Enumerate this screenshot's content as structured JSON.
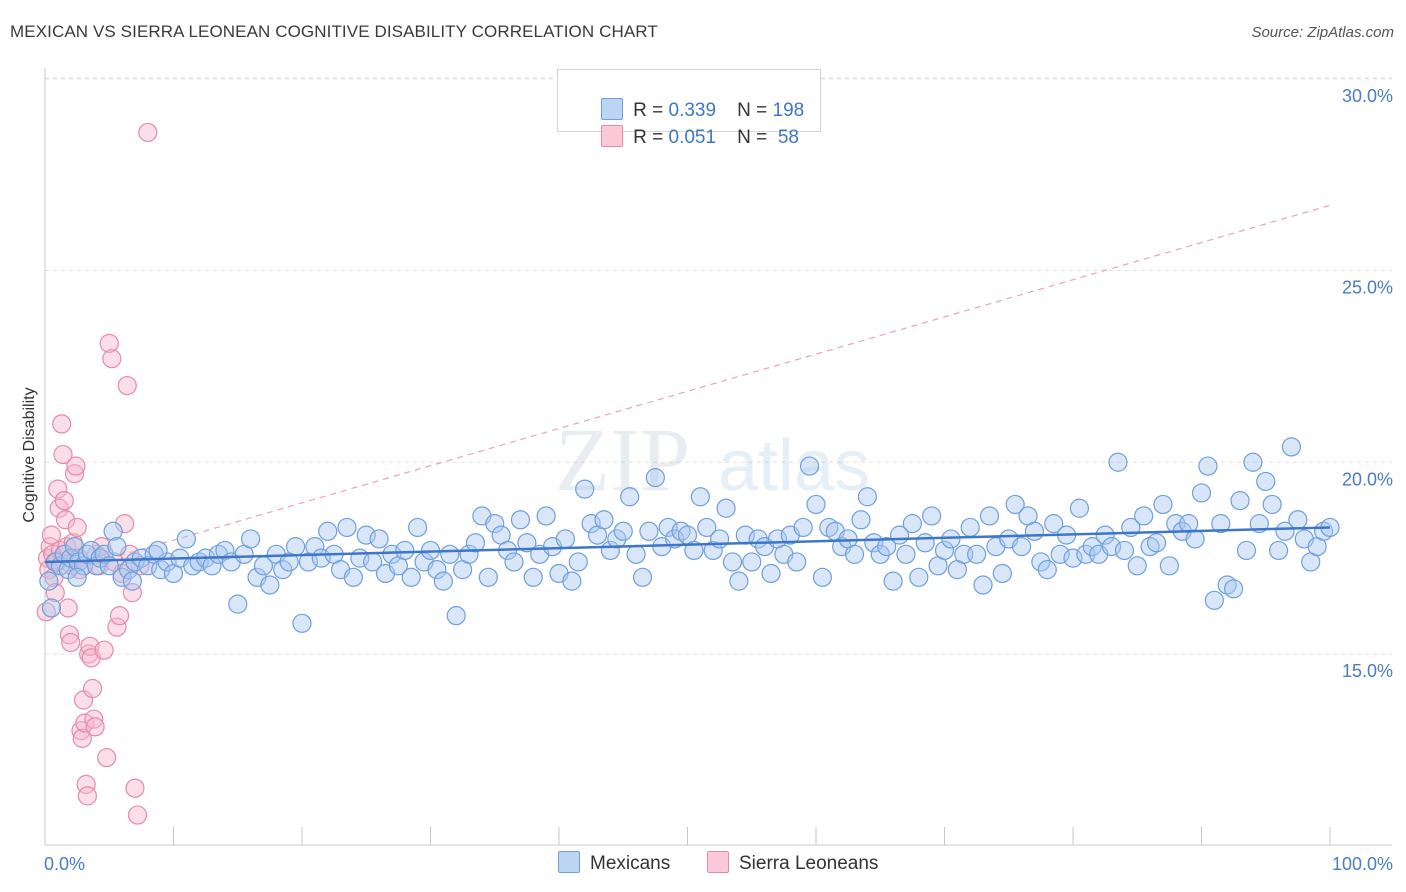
{
  "title": "MEXICAN VS SIERRA LEONEAN COGNITIVE DISABILITY CORRELATION CHART",
  "source": "Source: ZipAtlas.com",
  "watermark": {
    "zip": "ZIP",
    "atlas": "atlas"
  },
  "colors": {
    "blue_fill": "#a9c8ef",
    "blue_stroke": "#6f9fdc",
    "blue_line": "#3f76c7",
    "pink_fill": "#f7b8cb",
    "pink_stroke": "#e68aa7",
    "pink_line": "#e8a3b8",
    "tick_text": "#4a7cc4",
    "grid": "#e0e0e0"
  },
  "legend": {
    "rows": [
      {
        "r_label": "R = ",
        "r_value": "0.339",
        "n_label": "N = ",
        "n_value": "198"
      },
      {
        "r_label": "R = ",
        "r_value": "0.051",
        "n_label": "N = ",
        "n_value": " 58"
      }
    ]
  },
  "bottom_legend": {
    "series1": "Mexicans",
    "series2": "Sierra Leoneans"
  },
  "chart_data": {
    "type": "scatter",
    "title": "MEXICAN VS SIERRA LEONEAN COGNITIVE DISABILITY CORRELATION CHART",
    "xlabel": "",
    "ylabel": "Cognitive Disability",
    "xlim": [
      0,
      100
    ],
    "ylim": [
      10.0,
      31.0
    ],
    "y_ticks": [
      15.0,
      20.0,
      25.0,
      30.0
    ],
    "y_tick_labels": [
      "15.0%",
      "20.0%",
      "25.0%",
      "30.0%"
    ],
    "x_tick_labels": [
      "0.0%",
      "100.0%"
    ],
    "series": [
      {
        "name": "Mexicans",
        "R": 0.339,
        "N": 198,
        "trend": {
          "x": [
            0,
            100
          ],
          "y": [
            17.4,
            18.3
          ]
        },
        "points": [
          [
            0.3,
            16.9
          ],
          [
            0.5,
            16.2
          ],
          [
            0.8,
            17.4
          ],
          [
            1.2,
            17.3
          ],
          [
            1.5,
            17.6
          ],
          [
            1.8,
            17.2
          ],
          [
            2.0,
            17.5
          ],
          [
            2.3,
            17.8
          ],
          [
            2.6,
            17.4
          ],
          [
            3.0,
            17.3
          ],
          [
            3.3,
            17.6
          ],
          [
            3.6,
            17.7
          ],
          [
            4.0,
            17.3
          ],
          [
            4.3,
            17.5
          ],
          [
            4.6,
            17.6
          ],
          [
            5.0,
            17.3
          ],
          [
            5.3,
            18.2
          ],
          [
            5.6,
            17.8
          ],
          [
            6.0,
            17.0
          ],
          [
            6.5,
            17.2
          ],
          [
            7.0,
            17.4
          ],
          [
            7.5,
            17.5
          ],
          [
            8.0,
            17.3
          ],
          [
            8.5,
            17.6
          ],
          [
            9.0,
            17.2
          ],
          [
            9.5,
            17.4
          ],
          [
            10.0,
            17.1
          ],
          [
            10.5,
            17.5
          ],
          [
            11.0,
            18.0
          ],
          [
            11.5,
            17.3
          ],
          [
            12.0,
            17.4
          ],
          [
            12.5,
            17.5
          ],
          [
            13.0,
            17.3
          ],
          [
            13.5,
            17.6
          ],
          [
            14.0,
            17.7
          ],
          [
            14.5,
            17.4
          ],
          [
            15.0,
            16.3
          ],
          [
            15.5,
            17.6
          ],
          [
            16.0,
            18.0
          ],
          [
            16.5,
            17.0
          ],
          [
            17.0,
            17.3
          ],
          [
            17.5,
            16.8
          ],
          [
            18.0,
            17.6
          ],
          [
            18.5,
            17.2
          ],
          [
            19.0,
            17.4
          ],
          [
            19.5,
            17.8
          ],
          [
            20.0,
            15.8
          ],
          [
            20.5,
            17.4
          ],
          [
            21.0,
            17.8
          ],
          [
            21.5,
            17.5
          ],
          [
            22.0,
            18.2
          ],
          [
            22.5,
            17.6
          ],
          [
            23.0,
            17.2
          ],
          [
            23.5,
            18.3
          ],
          [
            24.0,
            17.0
          ],
          [
            24.5,
            17.5
          ],
          [
            25.0,
            18.1
          ],
          [
            25.5,
            17.4
          ],
          [
            26.0,
            18.0
          ],
          [
            26.5,
            17.1
          ],
          [
            27.0,
            17.6
          ],
          [
            27.5,
            17.3
          ],
          [
            28.0,
            17.7
          ],
          [
            28.5,
            17.0
          ],
          [
            29.0,
            18.3
          ],
          [
            29.5,
            17.4
          ],
          [
            30.0,
            17.7
          ],
          [
            30.5,
            17.2
          ],
          [
            31.0,
            16.9
          ],
          [
            31.5,
            17.6
          ],
          [
            32.0,
            16.0
          ],
          [
            32.5,
            17.2
          ],
          [
            33.0,
            17.6
          ],
          [
            33.5,
            17.9
          ],
          [
            34.0,
            18.6
          ],
          [
            34.5,
            17.0
          ],
          [
            35.0,
            18.4
          ],
          [
            35.5,
            18.1
          ],
          [
            36.0,
            17.7
          ],
          [
            36.5,
            17.4
          ],
          [
            37.0,
            18.5
          ],
          [
            37.5,
            17.9
          ],
          [
            38.0,
            17.0
          ],
          [
            38.5,
            17.6
          ],
          [
            39.0,
            18.6
          ],
          [
            39.5,
            17.8
          ],
          [
            40.0,
            17.1
          ],
          [
            40.5,
            18.0
          ],
          [
            41.0,
            16.9
          ],
          [
            41.5,
            17.4
          ],
          [
            42.0,
            19.3
          ],
          [
            42.5,
            18.4
          ],
          [
            43.0,
            18.1
          ],
          [
            43.5,
            18.5
          ],
          [
            44.0,
            17.7
          ],
          [
            44.5,
            18.0
          ],
          [
            45.0,
            18.2
          ],
          [
            45.5,
            19.1
          ],
          [
            46.0,
            17.6
          ],
          [
            46.5,
            17.0
          ],
          [
            47.0,
            18.2
          ],
          [
            47.5,
            19.6
          ],
          [
            48.0,
            17.8
          ],
          [
            48.5,
            18.3
          ],
          [
            49.0,
            18.0
          ],
          [
            49.5,
            18.2
          ],
          [
            50.0,
            18.1
          ],
          [
            50.5,
            17.7
          ],
          [
            51.0,
            19.1
          ],
          [
            51.5,
            18.3
          ],
          [
            52.0,
            17.7
          ],
          [
            52.5,
            18.0
          ],
          [
            53.0,
            18.8
          ],
          [
            53.5,
            17.4
          ],
          [
            54.0,
            16.9
          ],
          [
            54.5,
            18.1
          ],
          [
            55.0,
            17.4
          ],
          [
            55.5,
            18.0
          ],
          [
            56.0,
            17.8
          ],
          [
            56.5,
            17.1
          ],
          [
            57.0,
            18.0
          ],
          [
            57.5,
            17.6
          ],
          [
            58.0,
            18.1
          ],
          [
            58.5,
            17.4
          ],
          [
            59.0,
            18.3
          ],
          [
            59.5,
            19.9
          ],
          [
            60.0,
            18.9
          ],
          [
            60.5,
            17.0
          ],
          [
            61.0,
            18.3
          ],
          [
            61.5,
            18.2
          ],
          [
            62.0,
            17.8
          ],
          [
            62.5,
            18.0
          ],
          [
            63.0,
            17.6
          ],
          [
            63.5,
            18.5
          ],
          [
            64.0,
            19.1
          ],
          [
            64.5,
            17.9
          ],
          [
            65.0,
            17.6
          ],
          [
            65.5,
            17.8
          ],
          [
            66.0,
            16.9
          ],
          [
            66.5,
            18.1
          ],
          [
            67.0,
            17.6
          ],
          [
            67.5,
            18.4
          ],
          [
            68.0,
            17.0
          ],
          [
            68.5,
            17.9
          ],
          [
            69.0,
            18.6
          ],
          [
            69.5,
            17.3
          ],
          [
            70.0,
            17.7
          ],
          [
            70.5,
            18.0
          ],
          [
            71.0,
            17.2
          ],
          [
            71.5,
            17.6
          ],
          [
            72.0,
            18.3
          ],
          [
            72.5,
            17.6
          ],
          [
            73.0,
            16.8
          ],
          [
            73.5,
            18.6
          ],
          [
            74.0,
            17.8
          ],
          [
            74.5,
            17.1
          ],
          [
            75.0,
            18.0
          ],
          [
            75.5,
            18.9
          ],
          [
            76.0,
            17.8
          ],
          [
            76.5,
            18.6
          ],
          [
            77.0,
            18.2
          ],
          [
            77.5,
            17.4
          ],
          [
            78.0,
            17.2
          ],
          [
            78.5,
            18.4
          ],
          [
            79.0,
            17.6
          ],
          [
            79.5,
            18.1
          ],
          [
            80.0,
            17.5
          ],
          [
            80.5,
            18.8
          ],
          [
            81.0,
            17.6
          ],
          [
            81.5,
            17.8
          ],
          [
            82.0,
            17.6
          ],
          [
            82.5,
            18.1
          ],
          [
            83.0,
            17.8
          ],
          [
            83.5,
            20.0
          ],
          [
            84.0,
            17.7
          ],
          [
            84.5,
            18.3
          ],
          [
            85.0,
            17.3
          ],
          [
            85.5,
            18.6
          ],
          [
            86.0,
            17.8
          ],
          [
            86.5,
            17.9
          ],
          [
            87.0,
            18.9
          ],
          [
            87.5,
            17.3
          ],
          [
            88.0,
            18.4
          ],
          [
            88.5,
            18.2
          ],
          [
            89.0,
            18.4
          ],
          [
            89.5,
            18.0
          ],
          [
            90.0,
            19.2
          ],
          [
            90.5,
            19.9
          ],
          [
            91.0,
            16.4
          ],
          [
            91.5,
            18.4
          ],
          [
            92.0,
            16.8
          ],
          [
            92.5,
            16.7
          ],
          [
            93.0,
            19.0
          ],
          [
            93.5,
            17.7
          ],
          [
            94.0,
            20.0
          ],
          [
            94.5,
            18.4
          ],
          [
            95.0,
            19.5
          ],
          [
            95.5,
            18.9
          ],
          [
            96.0,
            17.7
          ],
          [
            96.5,
            18.2
          ],
          [
            97.0,
            20.4
          ],
          [
            97.5,
            18.5
          ],
          [
            98.0,
            18.0
          ],
          [
            98.5,
            17.4
          ],
          [
            99.0,
            17.8
          ],
          [
            99.5,
            18.2
          ],
          [
            100.0,
            18.3
          ],
          [
            2.5,
            17.0
          ],
          [
            6.8,
            16.9
          ],
          [
            8.8,
            17.7
          ]
        ]
      },
      {
        "name": "Sierra Leoneans",
        "R": 0.051,
        "N": 58,
        "trend": {
          "x": [
            0,
            100
          ],
          "y": [
            17.0,
            26.7
          ]
        },
        "points": [
          [
            0.2,
            17.5
          ],
          [
            0.3,
            17.2
          ],
          [
            0.4,
            17.8
          ],
          [
            0.5,
            18.1
          ],
          [
            0.6,
            17.6
          ],
          [
            0.7,
            17.0
          ],
          [
            0.8,
            16.6
          ],
          [
            0.9,
            17.4
          ],
          [
            1.0,
            19.3
          ],
          [
            1.1,
            18.8
          ],
          [
            1.2,
            17.7
          ],
          [
            1.3,
            21.0
          ],
          [
            1.4,
            20.2
          ],
          [
            1.5,
            19.0
          ],
          [
            1.6,
            18.5
          ],
          [
            1.7,
            17.8
          ],
          [
            1.8,
            16.2
          ],
          [
            1.9,
            15.5
          ],
          [
            2.0,
            15.3
          ],
          [
            2.1,
            17.3
          ],
          [
            2.2,
            17.9
          ],
          [
            2.3,
            19.7
          ],
          [
            2.4,
            19.9
          ],
          [
            2.5,
            18.3
          ],
          [
            2.6,
            17.5
          ],
          [
            2.7,
            17.2
          ],
          [
            2.8,
            13.0
          ],
          [
            2.9,
            12.8
          ],
          [
            3.0,
            13.8
          ],
          [
            3.1,
            13.2
          ],
          [
            3.2,
            11.6
          ],
          [
            3.3,
            11.3
          ],
          [
            3.4,
            15.0
          ],
          [
            3.5,
            15.2
          ],
          [
            3.6,
            14.9
          ],
          [
            3.7,
            14.1
          ],
          [
            3.8,
            13.3
          ],
          [
            3.9,
            13.1
          ],
          [
            4.0,
            17.6
          ],
          [
            4.2,
            17.3
          ],
          [
            4.4,
            17.8
          ],
          [
            4.6,
            15.1
          ],
          [
            4.8,
            12.3
          ],
          [
            5.0,
            23.1
          ],
          [
            5.2,
            22.7
          ],
          [
            5.4,
            17.4
          ],
          [
            5.6,
            15.7
          ],
          [
            5.8,
            16.0
          ],
          [
            6.0,
            17.1
          ],
          [
            6.2,
            18.4
          ],
          [
            6.4,
            22.0
          ],
          [
            6.6,
            17.6
          ],
          [
            6.8,
            16.6
          ],
          [
            7.0,
            11.5
          ],
          [
            7.2,
            10.8
          ],
          [
            7.4,
            17.3
          ],
          [
            8.0,
            28.6
          ],
          [
            0.1,
            16.1
          ]
        ]
      }
    ]
  }
}
